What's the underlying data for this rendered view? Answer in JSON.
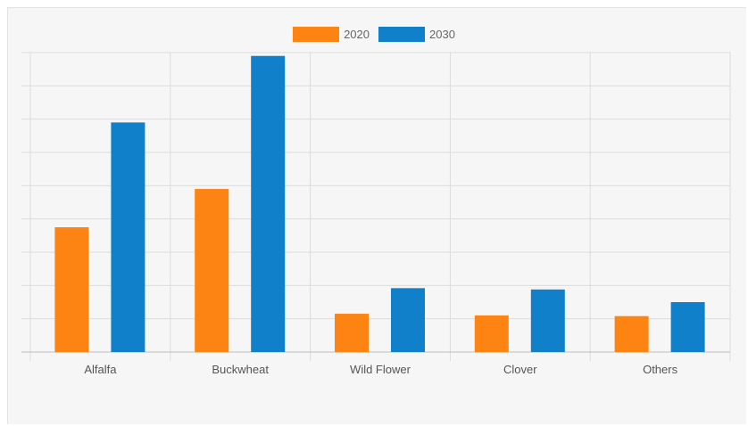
{
  "chart_data": {
    "type": "bar",
    "categories": [
      "Alfalfa",
      "Buckwheat",
      "Wild Flower",
      "Clover",
      "Others"
    ],
    "series": [
      {
        "name": "2020",
        "color": "#fd8313",
        "values": [
          3.75,
          4.9,
          1.15,
          1.1,
          1.08
        ]
      },
      {
        "name": "2030",
        "color": "#1080cb",
        "values": [
          6.9,
          8.9,
          1.92,
          1.88,
          1.5
        ]
      }
    ],
    "ylim": [
      0,
      9
    ],
    "grid": true,
    "y_tick_labels_visible": false,
    "legend_position": "top-center"
  }
}
